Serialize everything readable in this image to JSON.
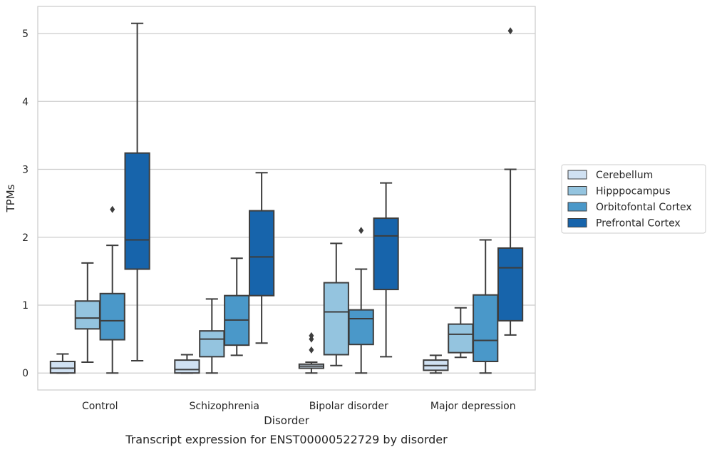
{
  "chart_data": {
    "type": "box",
    "title": "",
    "caption": "Transcript expression for ENST00000522729 by disorder",
    "xlabel": "Disorder",
    "ylabel": "TPMs",
    "ylim": [
      -0.25,
      5.4
    ],
    "yticks": [
      0,
      1,
      2,
      3,
      4,
      5
    ],
    "grid": "horizontal",
    "legend_position": "right",
    "categories": [
      "Control",
      "Schizophrenia",
      "Bipolar disorder",
      "Major depression"
    ],
    "series": [
      {
        "name": "Cerebellum",
        "color": "#d0e1f2",
        "boxes": [
          {
            "whisker_low": 0.0,
            "q1": 0.0,
            "median": 0.07,
            "q3": 0.17,
            "whisker_high": 0.28,
            "outliers": []
          },
          {
            "whisker_low": 0.0,
            "q1": 0.0,
            "median": 0.05,
            "q3": 0.19,
            "whisker_high": 0.27,
            "outliers": []
          },
          {
            "whisker_low": 0.0,
            "q1": 0.07,
            "median": 0.1,
            "q3": 0.13,
            "whisker_high": 0.16,
            "outliers": [
              0.34,
              0.5,
              0.55
            ]
          },
          {
            "whisker_low": 0.0,
            "q1": 0.04,
            "median": 0.11,
            "q3": 0.19,
            "whisker_high": 0.26,
            "outliers": []
          }
        ]
      },
      {
        "name": "Hipppocampus",
        "color": "#94c4df",
        "boxes": [
          {
            "whisker_low": 0.16,
            "q1": 0.65,
            "median": 0.81,
            "q3": 1.06,
            "whisker_high": 1.62,
            "outliers": []
          },
          {
            "whisker_low": 0.0,
            "q1": 0.24,
            "median": 0.5,
            "q3": 0.62,
            "whisker_high": 1.09,
            "outliers": []
          },
          {
            "whisker_low": 0.11,
            "q1": 0.27,
            "median": 0.9,
            "q3": 1.33,
            "whisker_high": 1.91,
            "outliers": []
          },
          {
            "whisker_low": 0.23,
            "q1": 0.3,
            "median": 0.57,
            "q3": 0.72,
            "whisker_high": 0.96,
            "outliers": []
          }
        ]
      },
      {
        "name": "Orbitofontal Cortex",
        "color": "#4a98c9",
        "boxes": [
          {
            "whisker_low": 0.0,
            "q1": 0.49,
            "median": 0.77,
            "q3": 1.17,
            "whisker_high": 1.88,
            "outliers": [
              2.41
            ]
          },
          {
            "whisker_low": 0.26,
            "q1": 0.41,
            "median": 0.78,
            "q3": 1.14,
            "whisker_high": 1.69,
            "outliers": []
          },
          {
            "whisker_low": 0.0,
            "q1": 0.42,
            "median": 0.8,
            "q3": 0.93,
            "whisker_high": 1.53,
            "outliers": [
              2.1
            ]
          },
          {
            "whisker_low": 0.0,
            "q1": 0.17,
            "median": 0.48,
            "q3": 1.15,
            "whisker_high": 1.96,
            "outliers": []
          }
        ]
      },
      {
        "name": "Prefrontal Cortex",
        "color": "#1764ab",
        "boxes": [
          {
            "whisker_low": 0.18,
            "q1": 1.53,
            "median": 1.96,
            "q3": 3.24,
            "whisker_high": 5.15,
            "outliers": []
          },
          {
            "whisker_low": 0.44,
            "q1": 1.14,
            "median": 1.71,
            "q3": 2.39,
            "whisker_high": 2.95,
            "outliers": []
          },
          {
            "whisker_low": 0.24,
            "q1": 1.23,
            "median": 2.02,
            "q3": 2.28,
            "whisker_high": 2.8,
            "outliers": []
          },
          {
            "whisker_low": 0.56,
            "q1": 0.77,
            "median": 1.55,
            "q3": 1.84,
            "whisker_high": 3.0,
            "outliers": [
              5.04
            ]
          }
        ]
      }
    ]
  }
}
